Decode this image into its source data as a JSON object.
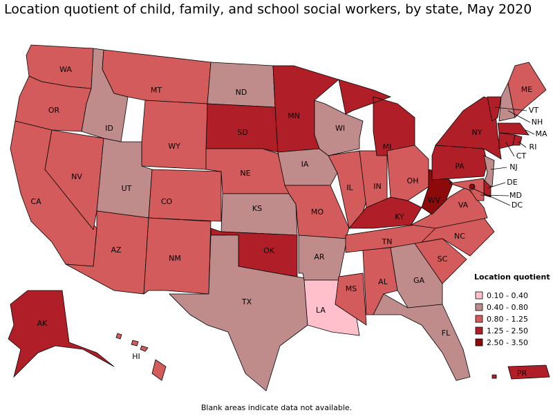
{
  "title": "Location quotient of child, family, and school social workers, by state, May 2020",
  "note": "Blank areas indicate data not available.",
  "legend": {
    "title": "Location quotient",
    "items": [
      {
        "label": "0.10 - 0.40",
        "color": "#ffc0cb"
      },
      {
        "label": "0.40 - 0.80",
        "color": "#bf8b8b"
      },
      {
        "label": "0.80 - 1.25",
        "color": "#d45b5b"
      },
      {
        "label": "1.25 - 2.50",
        "color": "#b01f27"
      },
      {
        "label": "2.50 - 3.50",
        "color": "#8c0a0a"
      }
    ]
  },
  "states": [
    {
      "abbr": "WA",
      "class": 2
    },
    {
      "abbr": "OR",
      "class": 2
    },
    {
      "abbr": "CA",
      "class": 2
    },
    {
      "abbr": "NV",
      "class": 2
    },
    {
      "abbr": "ID",
      "class": 1
    },
    {
      "abbr": "MT",
      "class": 2
    },
    {
      "abbr": "WY",
      "class": 2
    },
    {
      "abbr": "UT",
      "class": 1
    },
    {
      "abbr": "CO",
      "class": 2
    },
    {
      "abbr": "AZ",
      "class": 2
    },
    {
      "abbr": "NM",
      "class": 2
    },
    {
      "abbr": "ND",
      "class": 1
    },
    {
      "abbr": "SD",
      "class": 3
    },
    {
      "abbr": "NE",
      "class": 2
    },
    {
      "abbr": "KS",
      "class": 1
    },
    {
      "abbr": "OK",
      "class": 3
    },
    {
      "abbr": "TX",
      "class": 1
    },
    {
      "abbr": "MN",
      "class": 3
    },
    {
      "abbr": "IA",
      "class": 1
    },
    {
      "abbr": "MO",
      "class": 2
    },
    {
      "abbr": "AR",
      "class": 1
    },
    {
      "abbr": "LA",
      "class": 0
    },
    {
      "abbr": "MS",
      "class": 2
    },
    {
      "abbr": "WI",
      "class": 1
    },
    {
      "abbr": "IL",
      "class": 2
    },
    {
      "abbr": "IN",
      "class": 2
    },
    {
      "abbr": "MI",
      "class": 3
    },
    {
      "abbr": "OH",
      "class": 2
    },
    {
      "abbr": "KY",
      "class": 3
    },
    {
      "abbr": "TN",
      "class": 2
    },
    {
      "abbr": "AL",
      "class": 2
    },
    {
      "abbr": "GA",
      "class": 1
    },
    {
      "abbr": "FL",
      "class": 1
    },
    {
      "abbr": "SC",
      "class": 2
    },
    {
      "abbr": "NC",
      "class": 2
    },
    {
      "abbr": "VA",
      "class": 2
    },
    {
      "abbr": "WV",
      "class": 4
    },
    {
      "abbr": "PA",
      "class": 3
    },
    {
      "abbr": "NY",
      "class": 3
    },
    {
      "abbr": "VT",
      "class": 3
    },
    {
      "abbr": "NH",
      "class": 1
    },
    {
      "abbr": "ME",
      "class": 2
    },
    {
      "abbr": "MA",
      "class": 3
    },
    {
      "abbr": "CT",
      "class": 3
    },
    {
      "abbr": "RI",
      "class": 3
    },
    {
      "abbr": "NJ",
      "class": 1
    },
    {
      "abbr": "DE",
      "class": 3
    },
    {
      "abbr": "MD",
      "class": 2
    },
    {
      "abbr": "DC",
      "class": 4
    },
    {
      "abbr": "AK",
      "class": 3
    },
    {
      "abbr": "HI",
      "class": 2
    },
    {
      "abbr": "PR",
      "class": 3
    }
  ]
}
